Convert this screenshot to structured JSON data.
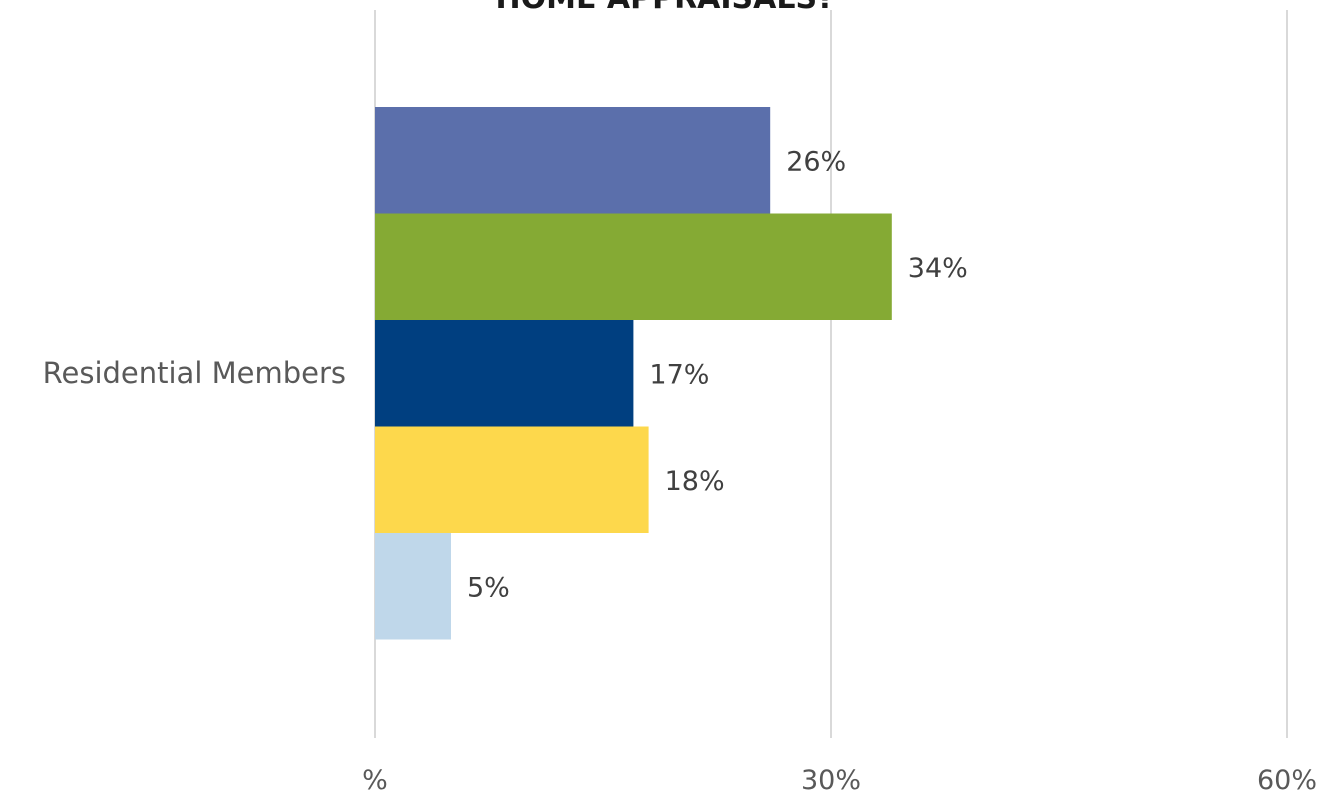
{
  "chart_data": {
    "type": "bar",
    "orientation": "horizontal",
    "title": "HOME APPRAISALS?",
    "categories": [
      "Residential Members"
    ],
    "series": [
      {
        "values": [
          26
        ],
        "color": "#5b6fab",
        "label": "26%"
      },
      {
        "values": [
          34
        ],
        "color": "#85aa34",
        "label": "34%"
      },
      {
        "values": [
          17
        ],
        "color": "#003f80",
        "label": "17%"
      },
      {
        "values": [
          18
        ],
        "color": "#fdd84c",
        "label": "18%"
      },
      {
        "values": [
          5
        ],
        "color": "#bfd7ea",
        "label": "5%"
      }
    ],
    "xlim": [
      0,
      60
    ],
    "xticks": [
      {
        "value": 0,
        "label": "%"
      },
      {
        "value": 30,
        "label": "30%"
      },
      {
        "value": 60,
        "label": "60%"
      }
    ],
    "grid": true,
    "legend": "none"
  }
}
